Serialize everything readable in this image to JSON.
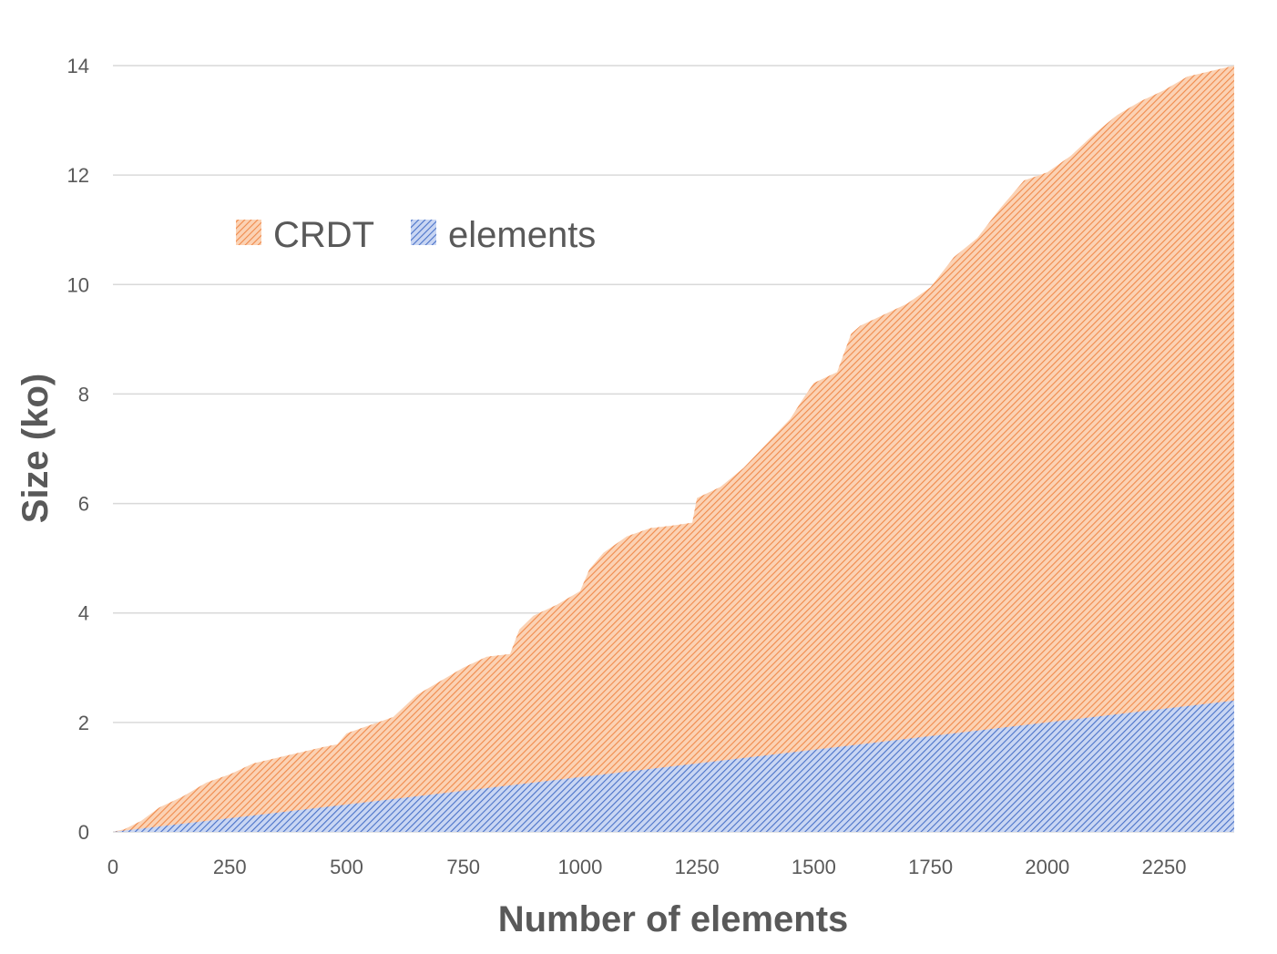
{
  "chart_data": {
    "type": "area",
    "stacked": true,
    "xlabel": "Number of elements",
    "ylabel": "Size  (ko)",
    "xlim": [
      0,
      2400
    ],
    "ylim": [
      0,
      14
    ],
    "x_ticks": [
      "0",
      "250",
      "500",
      "750",
      "1000",
      "1250",
      "1500",
      "1750",
      "2000",
      "2250"
    ],
    "y_ticks": [
      "0",
      "2",
      "4",
      "6",
      "8",
      "10",
      "12",
      "14"
    ],
    "grid": "horizontal",
    "legend": "upper-left",
    "series": [
      {
        "name": "CRDT",
        "color": "#f4a56f",
        "pattern": "diagonal-hatch",
        "x": [
          0,
          25,
          60,
          100,
          150,
          200,
          250,
          300,
          350,
          400,
          450,
          480,
          500,
          550,
          600,
          650,
          700,
          750,
          800,
          850,
          870,
          900,
          950,
          1000,
          1020,
          1050,
          1100,
          1150,
          1200,
          1240,
          1250,
          1300,
          1350,
          1400,
          1450,
          1480,
          1500,
          1550,
          1580,
          1600,
          1650,
          1700,
          1750,
          1800,
          1850,
          1900,
          1950,
          2000,
          2050,
          2100,
          2150,
          2200,
          2250,
          2300,
          2350,
          2400
        ],
        "values": [
          0,
          0.05,
          0.2,
          0.45,
          0.65,
          0.9,
          1.05,
          1.25,
          1.35,
          1.45,
          1.55,
          1.6,
          1.8,
          1.95,
          2.1,
          2.5,
          2.75,
          3.0,
          3.2,
          3.25,
          3.7,
          3.95,
          4.15,
          4.4,
          4.8,
          5.1,
          5.4,
          5.55,
          5.6,
          5.65,
          6.1,
          6.3,
          6.65,
          7.1,
          7.55,
          7.95,
          8.2,
          8.4,
          9.1,
          9.25,
          9.45,
          9.65,
          9.95,
          10.5,
          10.85,
          11.4,
          11.9,
          12.05,
          12.35,
          12.75,
          13.1,
          13.35,
          13.55,
          13.8,
          13.9,
          14.0
        ]
      },
      {
        "name": "elements",
        "color": "#6b8ed6",
        "pattern": "diagonal-hatch",
        "x": [
          0,
          2400
        ],
        "values": [
          0,
          2.4
        ]
      }
    ]
  }
}
